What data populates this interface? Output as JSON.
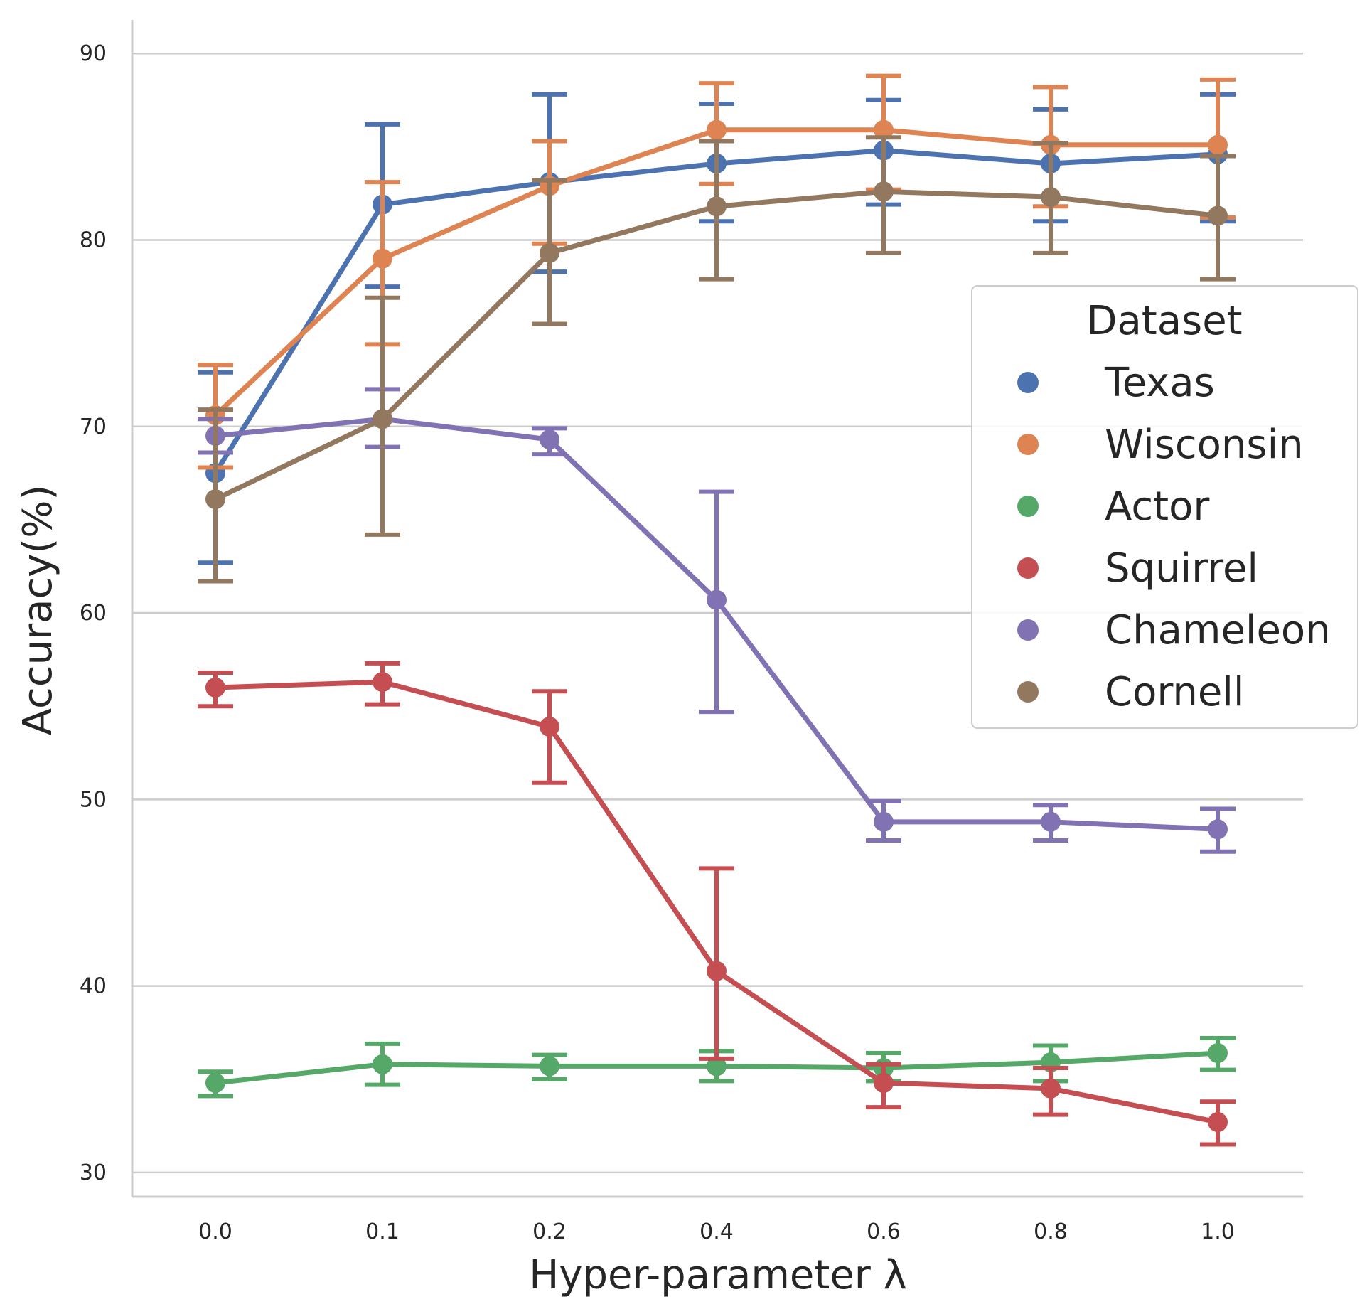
{
  "chart_data": {
    "type": "line",
    "title": "",
    "xlabel": "Hyper-parameter λ",
    "ylabel": "Accuracy(%)",
    "categories": [
      "0.0",
      "0.1",
      "0.2",
      "0.4",
      "0.6",
      "0.8",
      "1.0"
    ],
    "ylim": [
      28.7,
      91.8
    ],
    "yticks": [
      30,
      40,
      50,
      60,
      70,
      80,
      90
    ],
    "grid": "horizontal",
    "legend": {
      "title": "Dataset",
      "placement": "center-right"
    },
    "series": [
      {
        "name": "Texas",
        "color": "#4c72b0",
        "values": [
          67.5,
          81.9,
          83.1,
          84.1,
          84.8,
          84.1,
          84.6
        ],
        "err_low": [
          62.7,
          77.5,
          78.3,
          81.0,
          81.9,
          81.0,
          81.0
        ],
        "err_high": [
          72.9,
          86.2,
          87.8,
          87.3,
          87.5,
          87.0,
          87.8
        ]
      },
      {
        "name": "Wisconsin",
        "color": "#dd8452",
        "values": [
          70.6,
          79.0,
          82.9,
          85.9,
          85.9,
          85.1,
          85.1
        ],
        "err_low": [
          67.8,
          74.4,
          79.8,
          83.0,
          82.7,
          81.8,
          81.2
        ],
        "err_high": [
          73.3,
          83.1,
          85.3,
          88.4,
          88.8,
          88.2,
          88.6
        ]
      },
      {
        "name": "Actor",
        "color": "#55a868",
        "values": [
          34.8,
          35.8,
          35.7,
          35.7,
          35.6,
          35.9,
          36.4
        ],
        "err_low": [
          34.1,
          34.7,
          35.0,
          34.9,
          34.9,
          34.9,
          35.5
        ],
        "err_high": [
          35.4,
          36.9,
          36.3,
          36.5,
          36.4,
          36.8,
          37.2
        ]
      },
      {
        "name": "Squirrel",
        "color": "#c44e52",
        "values": [
          56.0,
          56.3,
          53.9,
          40.8,
          34.8,
          34.5,
          32.7
        ],
        "err_low": [
          55.0,
          55.1,
          50.9,
          36.1,
          33.5,
          33.1,
          31.5
        ],
        "err_high": [
          56.8,
          57.3,
          55.8,
          46.3,
          35.8,
          35.6,
          33.8
        ]
      },
      {
        "name": "Chameleon",
        "color": "#8172b3",
        "values": [
          69.5,
          70.4,
          69.3,
          60.7,
          48.8,
          48.8,
          48.4
        ],
        "err_low": [
          68.6,
          68.9,
          68.5,
          54.7,
          47.8,
          47.8,
          47.2
        ],
        "err_high": [
          70.4,
          72.0,
          69.9,
          66.5,
          49.9,
          49.7,
          49.5
        ]
      },
      {
        "name": "Cornell",
        "color": "#937860",
        "values": [
          66.1,
          70.4,
          79.3,
          81.8,
          82.6,
          82.3,
          81.3
        ],
        "err_low": [
          61.7,
          64.2,
          75.5,
          77.9,
          79.3,
          79.3,
          77.9
        ],
        "err_high": [
          70.9,
          76.9,
          83.2,
          85.3,
          85.5,
          85.2,
          84.5
        ]
      }
    ]
  }
}
